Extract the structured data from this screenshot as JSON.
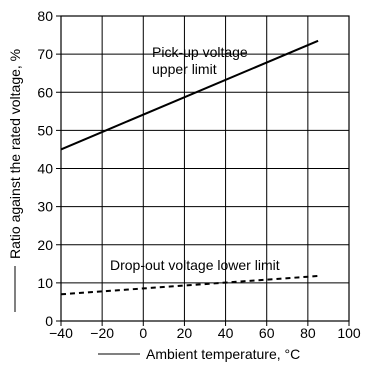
{
  "chart_data": {
    "type": "line",
    "title": "",
    "xlabel": "Ambient temperature, °C",
    "ylabel": "Ratio against the rated voltage, %",
    "xlim": [
      -40,
      100
    ],
    "ylim": [
      0,
      80
    ],
    "x_ticks": [
      "−40",
      "−20",
      "0",
      "20",
      "40",
      "60",
      "80",
      "100"
    ],
    "y_ticks": [
      "0",
      "10",
      "20",
      "30",
      "40",
      "50",
      "60",
      "70",
      "80"
    ],
    "grid": true,
    "series": [
      {
        "name": "Pick-up voltage upper limit",
        "style": "solid",
        "x": [
          -40,
          85
        ],
        "y": [
          45,
          73.5
        ]
      },
      {
        "name": "Drop-out voltage lower limit",
        "style": "dashed",
        "x": [
          -40,
          85
        ],
        "y": [
          7,
          11.8
        ]
      }
    ],
    "annotations": {
      "pickup_line1": "Pick-up voltage",
      "pickup_line2": "upper limit",
      "dropout": "Drop-out voltage lower limit"
    },
    "colors": {
      "lines": "#000000",
      "grid": "#000000",
      "background": "#ffffff"
    }
  }
}
